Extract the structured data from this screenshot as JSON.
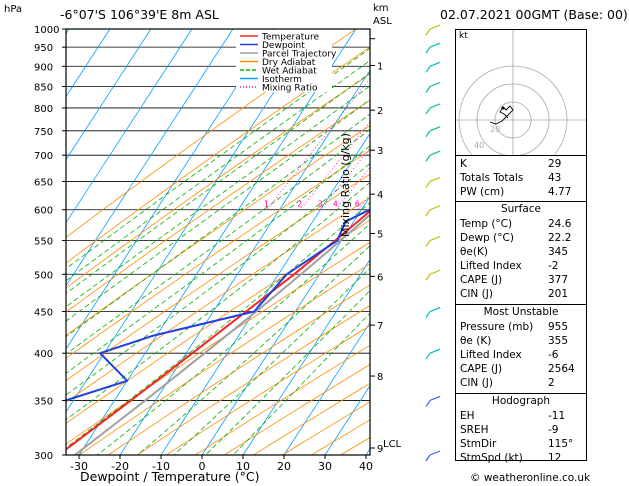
{
  "header": {
    "location": "-6°07'S  106°39'E  8m  ASL",
    "datetime": "02.07.2021  00GMT  (Base: 00)",
    "hpa_label": "hPa",
    "km_label": "km",
    "asl_label": "ASL"
  },
  "legend": [
    "Temperature",
    "Dewpoint",
    "Parcel Trajectory",
    "Dry Adiabat",
    "Wet Adiabat",
    "Isotherm",
    "Mixing Ratio"
  ],
  "axes": {
    "xlabel": "Dewpoint / Temperature (°C)",
    "mixing_ratio_label": "Mixing Ratio (g/kg)",
    "pressure_ticks": [
      "300",
      "350",
      "400",
      "450",
      "500",
      "550",
      "600",
      "650",
      "700",
      "750",
      "800",
      "850",
      "900",
      "950",
      "1000"
    ],
    "temp_ticks": [
      "-30",
      "-20",
      "-10",
      "0",
      "10",
      "20",
      "30",
      "40"
    ],
    "km_ticks": [
      "9",
      "8",
      "7",
      "6",
      "5",
      "4",
      "3",
      "2",
      "1"
    ],
    "lcl_label": "LCL",
    "mixing_ratio_ticks": [
      "1",
      "2",
      "3",
      "4",
      "6",
      "8",
      "10",
      "15",
      "20",
      "25"
    ]
  },
  "chart_data": {
    "type": "line",
    "title": "",
    "xlabel": "Dewpoint / Temperature (°C)",
    "ylabel": "hPa",
    "xlim": [
      -35,
      40
    ],
    "ylim": [
      1000,
      300
    ],
    "series": [
      {
        "name": "Temperature",
        "pressure": [
          1000,
          950,
          900,
          850,
          800,
          750,
          700,
          650,
          600,
          550,
          500,
          450,
          400,
          350,
          300
        ],
        "values": [
          24.6,
          22.5,
          20.0,
          17.2,
          14.5,
          11.5,
          8.4,
          5.4,
          2.5,
          -1.5,
          -6.2,
          -12.0,
          -18.5,
          -26.0,
          -35.0
        ]
      },
      {
        "name": "Dewpoint",
        "pressure": [
          1000,
          950,
          900,
          850,
          840,
          800,
          760,
          720,
          700,
          660,
          600,
          580,
          550,
          500,
          450,
          420,
          400,
          370,
          350,
          320,
          300
        ],
        "values": [
          22.2,
          21.0,
          18.5,
          16.0,
          10.0,
          12.5,
          9.0,
          3.0,
          7.0,
          6.0,
          2.0,
          -2.0,
          -1.0,
          -8.0,
          -10.0,
          -31.0,
          -41.0,
          -30.0,
          -42.0,
          -52.0,
          -44.0
        ]
      },
      {
        "name": "Parcel Trajectory",
        "pressure": [
          1000,
          950,
          900,
          850,
          800,
          750,
          700,
          650,
          600,
          550,
          500,
          450,
          400,
          350,
          300
        ],
        "values": [
          24.6,
          22.2,
          19.8,
          17.5,
          15.0,
          12.5,
          9.8,
          6.8,
          3.5,
          -0.2,
          -4.5,
          -9.5,
          -15.5,
          -22.5,
          -31.0
        ]
      }
    ]
  },
  "indices": [
    {
      "label": "K",
      "value": "29"
    },
    {
      "label": "Totals Totals",
      "value": "43"
    },
    {
      "label": "PW (cm)",
      "value": "4.77"
    }
  ],
  "surface": {
    "title": "Surface",
    "rows": [
      {
        "label": "Temp (°C)",
        "value": "24.6"
      },
      {
        "label": "Dewp (°C)",
        "value": "22.2"
      },
      {
        "label": "θe(K)",
        "value": "345"
      },
      {
        "label": "Lifted Index",
        "value": "-2"
      },
      {
        "label": "CAPE (J)",
        "value": "377"
      },
      {
        "label": "CIN (J)",
        "value": "201"
      }
    ]
  },
  "most_unstable": {
    "title": "Most Unstable",
    "rows": [
      {
        "label": "Pressure (mb)",
        "value": "955"
      },
      {
        "label": "θe (K)",
        "value": "355"
      },
      {
        "label": "Lifted Index",
        "value": "-6"
      },
      {
        "label": "CAPE (J)",
        "value": "2564"
      },
      {
        "label": "CIN (J)",
        "value": "2"
      }
    ]
  },
  "hodograph": {
    "title": "Hodograph",
    "unit": "kt",
    "ring_labels": [
      "20",
      "40"
    ],
    "rows": [
      {
        "label": "EH",
        "value": "-11"
      },
      {
        "label": "SREH",
        "value": "-9"
      },
      {
        "label": "StmDir",
        "value": "115°"
      },
      {
        "label": "StmSpd (kt)",
        "value": "12"
      }
    ]
  },
  "footer": "© weatheronline.co.uk",
  "colors": {
    "temperature": "#ff2020",
    "dewpoint": "#2040e0",
    "parcel": "#a0a0a0",
    "dry_adiabat": "#ff8c00",
    "wet_adiabat": "#00b000",
    "isotherm": "#00a0ff",
    "mixing_ratio": "#ff00aa"
  }
}
